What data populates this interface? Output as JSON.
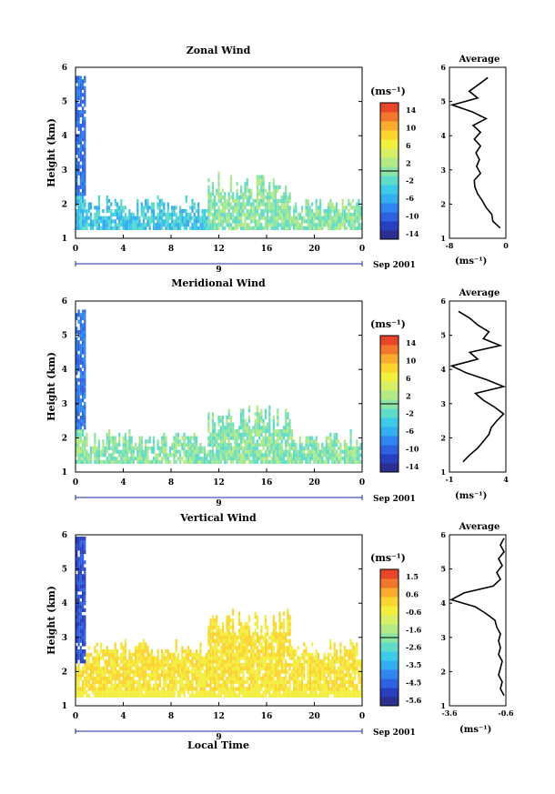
{
  "common": {
    "y_axis_label": "Height (km)",
    "x_axis_label": "Local Time",
    "x_ticks": [
      "0",
      "4",
      "8",
      "12",
      "16",
      "20",
      "0"
    ],
    "y_ticks": [
      "1",
      "2",
      "3",
      "4",
      "5",
      "6"
    ],
    "day_label": "9",
    "month_label": "Sep 2001",
    "avg_title": "Average",
    "cb_unit": "(ms⁻¹)",
    "avg_unit": "(ms⁻¹)"
  },
  "colors": {
    "scale": [
      "#2b2f8f",
      "#283fbf",
      "#2f62e2",
      "#2f86f0",
      "#33aef0",
      "#3ccbe6",
      "#5edbc9",
      "#8be4a6",
      "#b4ea86",
      "#d7ef64",
      "#f3ee3e",
      "#fbd42f",
      "#f9ac2b",
      "#f3772a",
      "#e8452a"
    ]
  },
  "chart_data": [
    {
      "type": "heatmap",
      "title": "Zonal Wind",
      "xlabel": "",
      "ylabel": "Height (km)",
      "xlim": [
        0,
        24
      ],
      "ylim": [
        1,
        6
      ],
      "colorbar": {
        "ticks": [
          "14",
          "10",
          "6",
          "2",
          "-2",
          "-6",
          "-10",
          "-14"
        ],
        "range": [
          -14,
          14
        ]
      },
      "average": {
        "title": "Average",
        "xlim": [
          -8,
          2
        ],
        "xticks": [
          "-8",
          "0"
        ],
        "heights": [
          1.3,
          1.5,
          1.7,
          1.9,
          2.1,
          2.3,
          2.5,
          2.7,
          2.9,
          3.1,
          3.3,
          3.5,
          3.7,
          3.9,
          4.1,
          4.3,
          4.5,
          4.7,
          4.9,
          5.1,
          5.3,
          5.5,
          5.7
        ],
        "values": [
          1.0,
          -0.3,
          -0.5,
          -1.5,
          -2.2,
          -3.0,
          -3.5,
          -3.6,
          -2.5,
          -3.2,
          -2.7,
          -3.3,
          -2.5,
          -3.6,
          -2.5,
          -3.8,
          -1.5,
          -4.0,
          -7.5,
          -3.0,
          -4.5,
          -2.8,
          -1.2
        ]
      }
    },
    {
      "type": "heatmap",
      "title": "Meridional Wind",
      "xlabel": "",
      "ylabel": "Height (km)",
      "xlim": [
        0,
        24
      ],
      "ylim": [
        1,
        6
      ],
      "colorbar": {
        "ticks": [
          "14",
          "10",
          "6",
          "2",
          "-2",
          "-6",
          "-10",
          "-14"
        ],
        "range": [
          -14,
          14
        ]
      },
      "average": {
        "title": "Average",
        "xlim": [
          -1,
          4
        ],
        "xticks": [
          "-1",
          "4"
        ],
        "heights": [
          1.3,
          1.5,
          1.7,
          1.9,
          2.1,
          2.3,
          2.5,
          2.7,
          2.9,
          3.1,
          3.3,
          3.5,
          3.7,
          3.9,
          4.1,
          4.3,
          4.5,
          4.7,
          4.9,
          5.1,
          5.3,
          5.5,
          5.7
        ],
        "values": [
          0.2,
          0.8,
          1.5,
          2.0,
          2.5,
          2.7,
          3.2,
          3.8,
          3.0,
          2.0,
          1.3,
          3.8,
          2.3,
          0.5,
          -0.8,
          1.5,
          0.8,
          3.5,
          2.0,
          2.5,
          1.5,
          0.8,
          -0.2
        ]
      }
    },
    {
      "type": "heatmap",
      "title": "Vertical Wind",
      "xlabel": "Local Time",
      "ylabel": "Height (km)",
      "xlim": [
        0,
        24
      ],
      "ylim": [
        1,
        6
      ],
      "colorbar": {
        "ticks": [
          "1.5",
          "0.6",
          "-0.6",
          "-1.6",
          "-2.6",
          "-3.5",
          "-4.5",
          "-5.6"
        ],
        "range": [
          -5.6,
          1.5
        ]
      },
      "average": {
        "title": "Average",
        "xlim": [
          -3.6,
          -0.5
        ],
        "xticks": [
          "-3.6",
          "-0.6"
        ],
        "heights": [
          1.3,
          1.5,
          1.7,
          1.9,
          2.1,
          2.3,
          2.5,
          2.7,
          2.9,
          3.1,
          3.3,
          3.5,
          3.7,
          3.9,
          4.1,
          4.3,
          4.5,
          4.7,
          4.9,
          5.1,
          5.3,
          5.5,
          5.7,
          5.9
        ],
        "values": [
          -0.6,
          -0.8,
          -0.7,
          -0.9,
          -0.8,
          -0.7,
          -0.9,
          -0.8,
          -0.9,
          -0.8,
          -1.0,
          -1.1,
          -1.6,
          -2.2,
          -3.5,
          -2.8,
          -1.2,
          -0.8,
          -1.0,
          -0.7,
          -0.9,
          -0.6,
          -0.8,
          -0.6
        ]
      }
    }
  ]
}
